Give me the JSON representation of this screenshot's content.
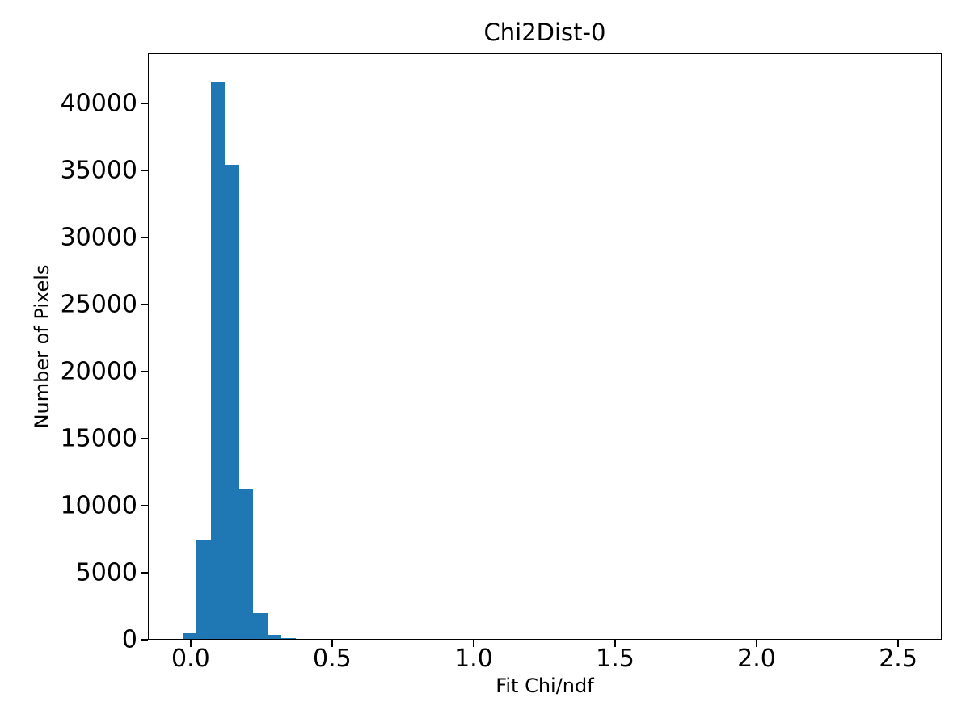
{
  "chart_data": {
    "type": "bar",
    "subtype": "histogram",
    "title": "Chi2Dist-0",
    "xlabel": "Fit Chi/ndf",
    "ylabel": "Number of Pixels",
    "bar_color": "#1f77b4",
    "background_color": "#ffffff",
    "axis_color": "#000000",
    "grid": false,
    "legend": "none",
    "bin_edges": [
      -0.029,
      0.021,
      0.071,
      0.121,
      0.171,
      0.221,
      0.271,
      0.321,
      0.371
    ],
    "counts": [
      480,
      7400,
      41570,
      35430,
      11260,
      2000,
      350,
      150
    ],
    "xlim": [
      -0.151,
      2.654
    ],
    "ylim": [
      0,
      43730
    ],
    "xticks": [
      {
        "value": 0.0,
        "label": "0.0"
      },
      {
        "value": 0.5,
        "label": "0.5"
      },
      {
        "value": 1.0,
        "label": "1.0"
      },
      {
        "value": 1.5,
        "label": "1.5"
      },
      {
        "value": 2.0,
        "label": "2.0"
      },
      {
        "value": 2.5,
        "label": "2.5"
      }
    ],
    "yticks": [
      {
        "value": 0,
        "label": "0"
      },
      {
        "value": 5000,
        "label": "5000"
      },
      {
        "value": 10000,
        "label": "10000"
      },
      {
        "value": 15000,
        "label": "15000"
      },
      {
        "value": 20000,
        "label": "20000"
      },
      {
        "value": 25000,
        "label": "25000"
      },
      {
        "value": 30000,
        "label": "30000"
      },
      {
        "value": 35000,
        "label": "35000"
      },
      {
        "value": 40000,
        "label": "40000"
      }
    ]
  }
}
